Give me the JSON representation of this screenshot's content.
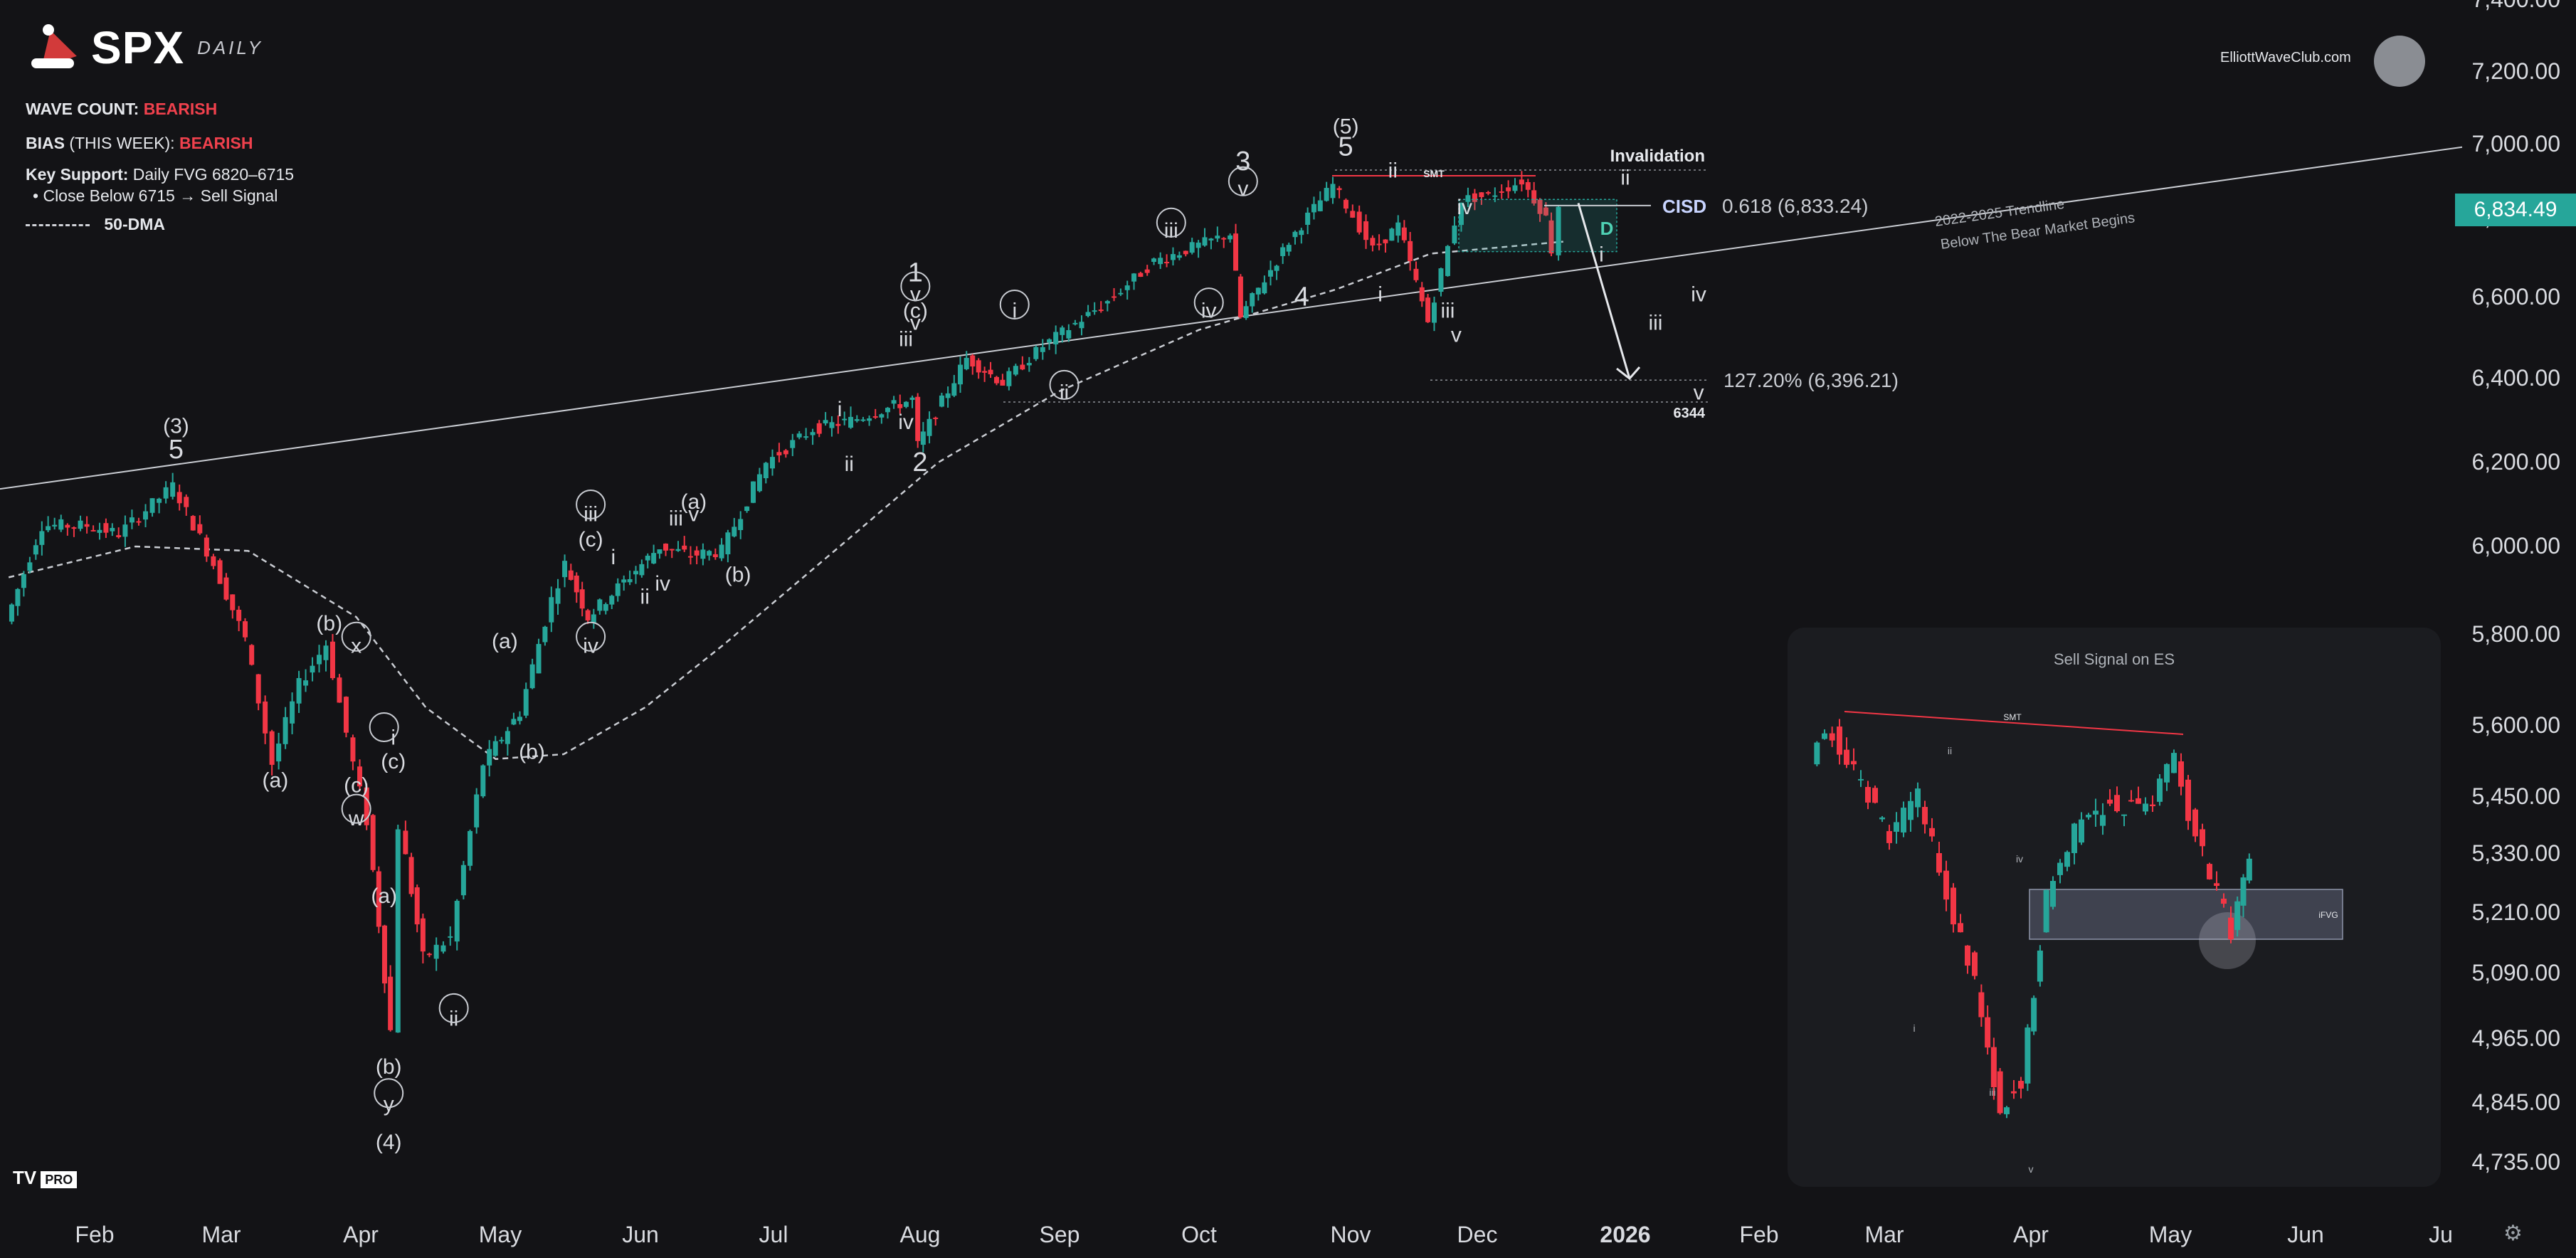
{
  "header": {
    "symbol": "SPX",
    "timeframe": "DAILY",
    "wave_count_label": "WAVE COUNT:",
    "wave_count_value": "BEARISH",
    "bias_label": "BIAS",
    "bias_suffix": "(THIS WEEK):",
    "bias_value": "BEARISH",
    "key_support_label": "Key Support:",
    "key_support_value": "Daily FVG 6820–6715",
    "bullet": "Close Below 6715 → Sell Signal",
    "dma_label": "50-DMA"
  },
  "branding": {
    "site": "ElliottWaveClub.com",
    "tv": "TV",
    "tv_badge": "PRO"
  },
  "price_tag": "6,834.49",
  "colors": {
    "up": "#26a69a",
    "down": "#f23645",
    "bg": "#131316",
    "text": "#d9dbe0",
    "trend": "#c9ccd2"
  },
  "chart_data": {
    "type": "candlestick",
    "title": "",
    "y_axis": {
      "ticks": [
        "4,735.00",
        "4,845.00",
        "4,965.00",
        "5,090.00",
        "5,210.00",
        "5,330.00",
        "5,450.00",
        "5,600.00",
        "5,800.00",
        "6,000.00",
        "6,200.00",
        "6,400.00",
        "6,600.00",
        "6,800.00",
        "7,000.00",
        "7,200.00",
        "7,400.00"
      ],
      "ylim": [
        4700,
        7420
      ]
    },
    "x_axis": {
      "ticks": [
        "Feb",
        "Mar",
        "Apr",
        "May",
        "Jun",
        "Jul",
        "Aug",
        "Sep",
        "Oct",
        "Nov",
        "Dec",
        "2026",
        "Feb",
        "Mar",
        "Apr",
        "May",
        "Jun",
        "Ju"
      ]
    },
    "close_path": [
      [
        "2025-01-13",
        5830
      ],
      [
        "2025-01-21",
        6050
      ],
      [
        "2025-01-31",
        6050
      ],
      [
        "2025-02-07",
        6030
      ],
      [
        "2025-02-19",
        6144
      ],
      [
        "2025-02-28",
        5960
      ],
      [
        "2025-03-07",
        5790
      ],
      [
        "2025-03-13",
        5520
      ],
      [
        "2025-03-19",
        5690
      ],
      [
        "2025-03-25",
        5780
      ],
      [
        "2025-03-31",
        5520
      ],
      [
        "2025-04-03",
        5400
      ],
      [
        "2025-04-08",
        4980
      ],
      [
        "2025-04-10",
        5390
      ],
      [
        "2025-04-15",
        5120
      ],
      [
        "2025-04-21",
        5160
      ],
      [
        "2025-04-28",
        5520
      ],
      [
        "2025-05-06",
        5630
      ],
      [
        "2025-05-13",
        5880
      ],
      [
        "2025-05-16",
        5960
      ],
      [
        "2025-05-21",
        5840
      ],
      [
        "2025-05-29",
        5920
      ],
      [
        "2025-06-06",
        6000
      ],
      [
        "2025-06-13",
        5980
      ],
      [
        "2025-06-20",
        5990
      ],
      [
        "2025-06-30",
        6200
      ],
      [
        "2025-07-10",
        6280
      ],
      [
        "2025-07-18",
        6300
      ],
      [
        "2025-07-31",
        6350
      ],
      [
        "2025-08-01",
        6240
      ],
      [
        "2025-08-12",
        6450
      ],
      [
        "2025-08-20",
        6390
      ],
      [
        "2025-08-29",
        6480
      ],
      [
        "2025-09-12",
        6590
      ],
      [
        "2025-09-22",
        6690
      ],
      [
        "2025-10-08",
        6760
      ],
      [
        "2025-10-10",
        6550
      ],
      [
        "2025-10-20",
        6740
      ],
      [
        "2025-10-29",
        6890
      ],
      [
        "2025-11-07",
        6720
      ],
      [
        "2025-11-13",
        6780
      ],
      [
        "2025-11-20",
        6540
      ],
      [
        "2025-11-28",
        6850
      ],
      [
        "2025-12-04",
        6860
      ],
      [
        "2025-12-11",
        6900
      ],
      [
        "2025-12-16",
        6800
      ],
      [
        "2025-12-17",
        6720
      ],
      [
        "2025-12-19",
        6834.49
      ]
    ],
    "dma50_path": [
      [
        "2025-01-13",
        5930
      ],
      [
        "2025-02-10",
        6000
      ],
      [
        "2025-03-07",
        5990
      ],
      [
        "2025-03-31",
        5840
      ],
      [
        "2025-04-15",
        5640
      ],
      [
        "2025-04-30",
        5530
      ],
      [
        "2025-05-15",
        5540
      ],
      [
        "2025-06-02",
        5640
      ],
      [
        "2025-06-20",
        5780
      ],
      [
        "2025-07-15",
        6000
      ],
      [
        "2025-08-05",
        6200
      ],
      [
        "2025-09-01",
        6370
      ],
      [
        "2025-10-01",
        6520
      ],
      [
        "2025-10-29",
        6620
      ],
      [
        "2025-11-20",
        6710
      ],
      [
        "2025-12-19",
        6740
      ]
    ],
    "trendline": {
      "label_1": "2022-2025 Trendline",
      "label_2": "Below The Bear Market Begins",
      "from": [
        "2025-01-13",
        6140
      ],
      "to": [
        "2026-07-10",
        7000
      ]
    },
    "levels": [
      {
        "label": "Invalidation",
        "value": 6930
      },
      {
        "label": "0.618 (6,833.24)",
        "value": 6833.24
      },
      {
        "label": "127.20% (6,396.21)",
        "value": 6396.21
      },
      {
        "label": "6344",
        "value": 6344
      }
    ],
    "annotations": {
      "smt": "SMT",
      "cisd": "CISD",
      "fvg_label": "D",
      "wave_labels": [
        {
          "t": "(3)",
          "d": "2025-02-19",
          "v": 6270
        },
        {
          "t": "5",
          "d": "2025-02-19",
          "v": 6210
        },
        {
          "t": "(b)",
          "d": "2025-03-25",
          "v": 5810
        },
        {
          "t": "x",
          "d": "2025-03-31",
          "v": 5760
        },
        {
          "t": "(a)",
          "d": "2025-03-13",
          "v": 5470
        },
        {
          "t": "(c)",
          "d": "2025-03-31",
          "v": 5460
        },
        {
          "t": "w",
          "d": "2025-03-31",
          "v": 5390
        },
        {
          "t": "i",
          "d": "2025-04-08",
          "v": 5560
        },
        {
          "t": "(c)",
          "d": "2025-04-08",
          "v": 5510
        },
        {
          "t": "(a)",
          "d": "2025-04-06",
          "v": 5230
        },
        {
          "t": "ii",
          "d": "2025-04-21",
          "v": 4990
        },
        {
          "t": "(b)",
          "d": "2025-04-07",
          "v": 4900
        },
        {
          "t": "y",
          "d": "2025-04-07",
          "v": 4830
        },
        {
          "t": "(4)",
          "d": "2025-04-07",
          "v": 4760
        },
        {
          "t": "(a)",
          "d": "2025-05-02",
          "v": 5770
        },
        {
          "t": "(b)",
          "d": "2025-05-08",
          "v": 5530
        },
        {
          "t": "iii",
          "d": "2025-05-21",
          "v": 6060
        },
        {
          "t": "(c)",
          "d": "2025-05-21",
          "v": 6000
        },
        {
          "t": "i",
          "d": "2025-05-26",
          "v": 5960
        },
        {
          "t": "iii",
          "d": "2025-06-09",
          "v": 6050
        },
        {
          "t": "ii",
          "d": "2025-06-02",
          "v": 5870
        },
        {
          "t": "iv",
          "d": "2025-06-06",
          "v": 5900
        },
        {
          "t": "iv",
          "d": "2025-05-21",
          "v": 5760
        },
        {
          "t": "(a)",
          "d": "2025-06-13",
          "v": 6090
        },
        {
          "t": "v",
          "d": "2025-06-13",
          "v": 6060
        },
        {
          "t": "(b)",
          "d": "2025-06-23",
          "v": 5920
        },
        {
          "t": "i",
          "d": "2025-07-15",
          "v": 6310
        },
        {
          "t": "ii",
          "d": "2025-07-17",
          "v": 6180
        },
        {
          "t": "1",
          "d": "2025-07-31",
          "v": 6640
        },
        {
          "t": "v",
          "d": "2025-07-31",
          "v": 6590
        },
        {
          "t": "(c)",
          "d": "2025-07-31",
          "v": 6550
        },
        {
          "t": "v",
          "d": "2025-07-31",
          "v": 6520
        },
        {
          "t": "iii",
          "d": "2025-07-29",
          "v": 6480
        },
        {
          "t": "iv",
          "d": "2025-07-29",
          "v": 6280
        },
        {
          "t": "2",
          "d": "2025-08-01",
          "v": 6180
        },
        {
          "t": "i",
          "d": "2025-08-22",
          "v": 6550
        },
        {
          "t": "ii",
          "d": "2025-09-02",
          "v": 6350
        },
        {
          "t": "iii",
          "d": "2025-09-25",
          "v": 6750
        },
        {
          "t": "iv",
          "d": "2025-10-03",
          "v": 6550
        },
        {
          "t": "3",
          "d": "2025-10-10",
          "v": 6930
        },
        {
          "t": "v",
          "d": "2025-10-10",
          "v": 6860
        },
        {
          "t": "4",
          "d": "2025-10-22",
          "v": 6580
        },
        {
          "t": "(5)",
          "d": "2025-10-31",
          "v": 7030
        },
        {
          "t": "5",
          "d": "2025-10-31",
          "v": 6970
        },
        {
          "t": "ii",
          "d": "2025-11-11",
          "v": 6910
        },
        {
          "t": "iv",
          "d": "2025-11-28",
          "v": 6810
        },
        {
          "t": "i",
          "d": "2025-11-08",
          "v": 6590
        },
        {
          "t": "iii",
          "d": "2025-11-24",
          "v": 6550
        },
        {
          "t": "v",
          "d": "2025-11-26",
          "v": 6490
        },
        {
          "t": "ii",
          "d": "2026-01-01",
          "v": 6890
        },
        {
          "t": "i",
          "d": "2025-12-27",
          "v": 6690
        },
        {
          "t": "iv",
          "d": "2026-01-18",
          "v": 6590
        },
        {
          "t": "iii",
          "d": "2026-01-08",
          "v": 6520
        },
        {
          "t": "v",
          "d": "2026-01-18",
          "v": 6350
        }
      ]
    }
  },
  "inset": {
    "title": "Sell Signal on ES",
    "smt": "SMT",
    "ifvg": "iFVG",
    "wave_labels": [
      "ii",
      "iv",
      "i",
      "iii",
      "v"
    ]
  }
}
